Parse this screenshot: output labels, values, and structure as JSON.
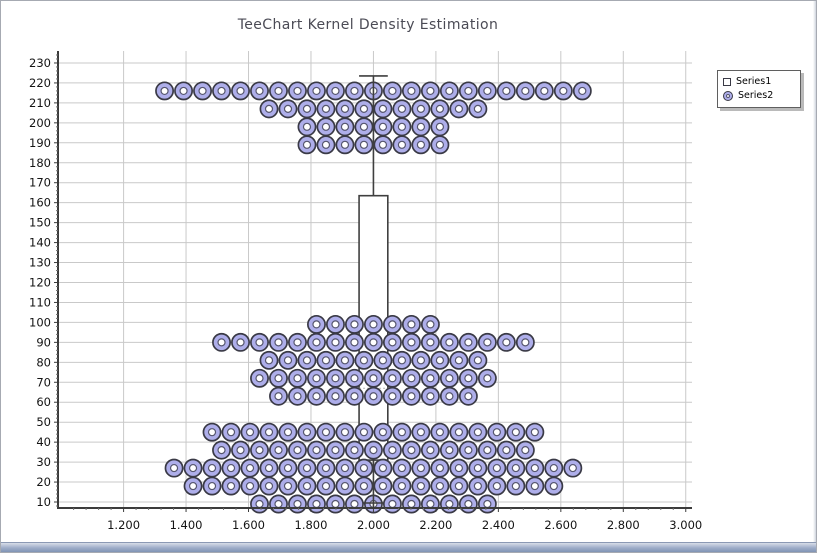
{
  "title": "TeeChart Kernel Density Estimation",
  "legend": {
    "position": "top-right",
    "items": [
      {
        "label": "Series1",
        "marker": "square-icon"
      },
      {
        "label": "Series2",
        "marker": "donut-icon"
      }
    ]
  },
  "colors": {
    "point_fill": "#aeaeea",
    "point_outline": "#3a3a46",
    "point_hole": "#ffffff",
    "box_line": "#3f3f3f",
    "box_fill": "#ffffff",
    "median_line": "#b4b4b4",
    "grid": "#c9c9c9",
    "axis": "#3b3b3b",
    "title_text": "#4b4b55",
    "tick_text": "#141414",
    "frame_bottom_bar": "#8094b5"
  },
  "chart_data": {
    "type": "scatter",
    "title": "TeeChart Kernel Density Estimation",
    "xlabel": "",
    "ylabel": "",
    "grid": true,
    "legend_position": "top-right",
    "xlim": [
      0.99,
      3.02
    ],
    "ylim": [
      7,
      236
    ],
    "x_ticks": [
      {
        "value": 1.2,
        "label": "1.200"
      },
      {
        "value": 1.4,
        "label": "1.400"
      },
      {
        "value": 1.6,
        "label": "1.600"
      },
      {
        "value": 1.8,
        "label": "1.800"
      },
      {
        "value": 2.0,
        "label": "2.000"
      },
      {
        "value": 2.2,
        "label": "2.200"
      },
      {
        "value": 2.4,
        "label": "2.400"
      },
      {
        "value": 2.6,
        "label": "2.600"
      },
      {
        "value": 2.8,
        "label": "2.800"
      },
      {
        "value": 3.0,
        "label": "3.000"
      }
    ],
    "y_ticks": [
      10,
      20,
      30,
      40,
      50,
      60,
      70,
      80,
      90,
      100,
      110,
      120,
      130,
      140,
      150,
      160,
      170,
      180,
      190,
      200,
      210,
      220,
      230
    ],
    "series": [
      {
        "name": "Series1",
        "type": "boxplot",
        "x_center": 2.0,
        "box_half_width": 0.046,
        "q1": 31,
        "median": 67,
        "q3": 163.5,
        "whisker_low": 9.5,
        "whisker_high": 223.5
      },
      {
        "name": "Series2",
        "type": "scatter",
        "marker": "donut",
        "x_center": 2.0,
        "x_spacing": 0.0608,
        "rows": [
          {
            "y": 216,
            "count": 23
          },
          {
            "y": 207,
            "count": 12
          },
          {
            "y": 198,
            "count": 8
          },
          {
            "y": 189,
            "count": 8
          },
          {
            "y": 99,
            "count": 7
          },
          {
            "y": 90,
            "count": 17
          },
          {
            "y": 81,
            "count": 12
          },
          {
            "y": 72,
            "count": 13
          },
          {
            "y": 63,
            "count": 11
          },
          {
            "y": 45,
            "count": 18
          },
          {
            "y": 36,
            "count": 17
          },
          {
            "y": 27,
            "count": 22
          },
          {
            "y": 18,
            "count": 20
          },
          {
            "y": 9,
            "count": 13
          }
        ]
      }
    ]
  }
}
